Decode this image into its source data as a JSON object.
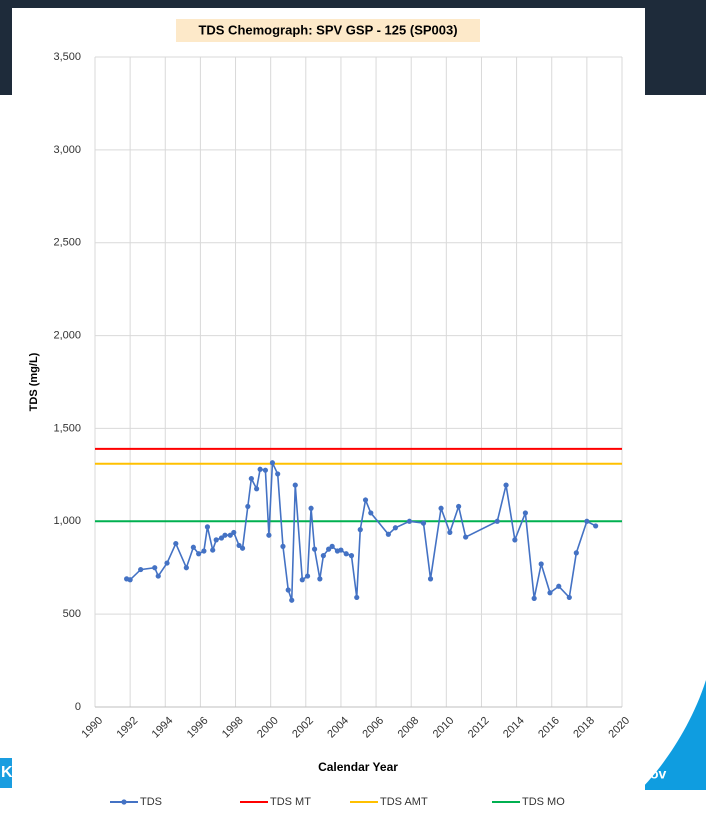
{
  "slide": {
    "left_text": "K",
    "right_text": "ov"
  },
  "chart_data": {
    "type": "line",
    "title": "TDS Chemograph: SPV GSP - 125 (SP003)",
    "xlabel": "Calendar Year",
    "ylabel": "TDS (mg/L)",
    "xlim": [
      1990,
      2020
    ],
    "xticks": [
      1990,
      1992,
      1994,
      1996,
      1998,
      2000,
      2002,
      2004,
      2006,
      2008,
      2010,
      2012,
      2014,
      2016,
      2018,
      2020
    ],
    "ylim": [
      0,
      3500
    ],
    "yticks": [
      0,
      {
        "value": 500,
        "label": "500"
      },
      {
        "value": 1000,
        "label": "1,000"
      },
      {
        "value": 1500,
        "label": "1,500"
      },
      {
        "value": 2000,
        "label": "2,000"
      },
      {
        "value": 2500,
        "label": "2,500"
      },
      {
        "value": 3000,
        "label": "3,000"
      },
      {
        "value": 3500,
        "label": "3,500"
      }
    ],
    "grid": true,
    "series": [
      {
        "name": "TDS",
        "color": "#4472c4",
        "x": [
          1991.8,
          1992.0,
          1992.6,
          1993.4,
          1993.6,
          1994.1,
          1994.6,
          1995.2,
          1995.6,
          1995.9,
          1996.2,
          1996.4,
          1996.7,
          1996.9,
          1997.2,
          1997.4,
          1997.7,
          1997.9,
          1998.2,
          1998.4,
          1998.7,
          1998.9,
          1999.2,
          1999.4,
          1999.7,
          1999.9,
          2000.1,
          2000.4,
          2000.7,
          2001.0,
          2001.2,
          2001.4,
          2001.8,
          2002.1,
          2002.3,
          2002.5,
          2002.8,
          2003.0,
          2003.3,
          2003.5,
          2003.8,
          2004.0,
          2004.3,
          2004.6,
          2004.9,
          2005.1,
          2005.4,
          2005.7,
          2006.7,
          2007.1,
          2007.9,
          2008.7,
          2009.1,
          2009.7,
          2010.2,
          2010.7,
          2011.1,
          2012.9,
          2013.4,
          2013.9,
          2014.5,
          2015.0,
          2015.4,
          2015.9,
          2016.4,
          2017.0,
          2017.4,
          2018.0,
          2018.5
        ],
        "values": [
          690,
          685,
          740,
          750,
          705,
          775,
          880,
          750,
          860,
          825,
          840,
          970,
          845,
          900,
          910,
          925,
          925,
          940,
          870,
          855,
          1080,
          1230,
          1175,
          1280,
          1275,
          925,
          1315,
          1255,
          865,
          630,
          575,
          1195,
          685,
          705,
          1070,
          850,
          690,
          815,
          850,
          865,
          840,
          845,
          825,
          815,
          590,
          955,
          1115,
          1045,
          930,
          965,
          1000,
          990,
          690,
          1070,
          940,
          1080,
          915,
          1000,
          1195,
          900,
          1045,
          585,
          770,
          615,
          650,
          590,
          830,
          1000,
          975
        ]
      }
    ],
    "reference_lines": [
      {
        "name": "TDS MT",
        "color": "#ff0000",
        "value": 1390
      },
      {
        "name": "TDS AMT",
        "color": "#ffc000",
        "value": 1310
      },
      {
        "name": "TDS MO",
        "color": "#00b050",
        "value": 1000
      }
    ]
  }
}
